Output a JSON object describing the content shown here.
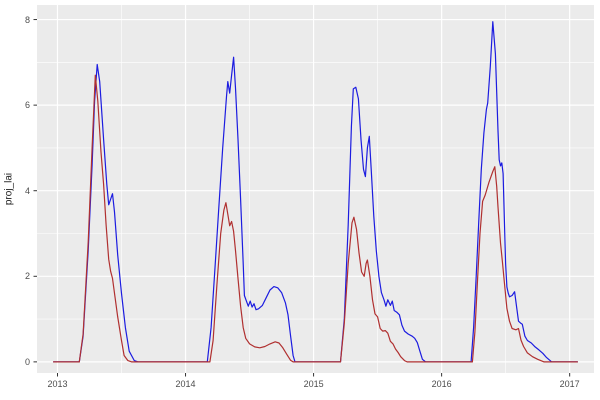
{
  "figure": {
    "background": "#FFFFFF",
    "panel_background": "#EBEBEB",
    "grid_color": "#FFFFFF",
    "tick_mark_color": "#333333",
    "tick_label_color": "#4D4D4D",
    "axis_title_color": "#1A1A1A"
  },
  "chart_data": {
    "type": "line",
    "title": "",
    "xlabel": "",
    "ylabel": "proj_lai",
    "grid": true,
    "legend": "none",
    "x_ticks": [
      "2013",
      "2014",
      "2015",
      "2016",
      "2017"
    ],
    "x_tick_values": [
      2013,
      2014,
      2015,
      2016,
      2017
    ],
    "x_minor_ticks": [
      2013.5,
      2014.5,
      2015.5,
      2016.5
    ],
    "y_ticks": [
      "0",
      "2",
      "4",
      "6",
      "8"
    ],
    "y_tick_values": [
      0,
      2,
      4,
      6,
      8
    ],
    "y_minor_ticks": [
      1,
      3,
      5,
      7
    ],
    "x_domain": [
      2012.84,
      2017.19
    ],
    "y_domain": [
      -0.26,
      8.34
    ],
    "series": [
      {
        "name": "blue-series",
        "color": "#1C1CE0",
        "points": [
          [
            2012.97,
            0
          ],
          [
            2013.17,
            0
          ],
          [
            2013.2,
            0.6
          ],
          [
            2013.24,
            2.6
          ],
          [
            2013.27,
            4.6
          ],
          [
            2013.29,
            6.1
          ],
          [
            2013.31,
            6.95
          ],
          [
            2013.33,
            6.55
          ],
          [
            2013.36,
            5.2
          ],
          [
            2013.385,
            4.15
          ],
          [
            2013.4,
            3.67
          ],
          [
            2013.43,
            3.93
          ],
          [
            2013.445,
            3.5
          ],
          [
            2013.47,
            2.5
          ],
          [
            2013.5,
            1.6
          ],
          [
            2013.53,
            0.8
          ],
          [
            2013.56,
            0.25
          ],
          [
            2013.6,
            0.03
          ],
          [
            2013.63,
            0
          ],
          [
            2014.17,
            0
          ],
          [
            2014.2,
            0.8
          ],
          [
            2014.23,
            2.2
          ],
          [
            2014.26,
            3.6
          ],
          [
            2014.29,
            5.0
          ],
          [
            2014.32,
            6.2
          ],
          [
            2014.33,
            6.55
          ],
          [
            2014.345,
            6.28
          ],
          [
            2014.36,
            6.7
          ],
          [
            2014.375,
            7.12
          ],
          [
            2014.39,
            6.4
          ],
          [
            2014.41,
            5.2
          ],
          [
            2014.43,
            3.8
          ],
          [
            2014.45,
            2.3
          ],
          [
            2014.46,
            1.55
          ],
          [
            2014.475,
            1.42
          ],
          [
            2014.49,
            1.3
          ],
          [
            2014.505,
            1.42
          ],
          [
            2014.52,
            1.28
          ],
          [
            2014.535,
            1.36
          ],
          [
            2014.55,
            1.22
          ],
          [
            2014.57,
            1.24
          ],
          [
            2014.6,
            1.32
          ],
          [
            2014.63,
            1.5
          ],
          [
            2014.66,
            1.68
          ],
          [
            2014.69,
            1.76
          ],
          [
            2014.72,
            1.73
          ],
          [
            2014.75,
            1.62
          ],
          [
            2014.78,
            1.38
          ],
          [
            2014.8,
            1.1
          ],
          [
            2014.82,
            0.62
          ],
          [
            2014.84,
            0.15
          ],
          [
            2014.855,
            0
          ],
          [
            2015.21,
            0
          ],
          [
            2015.24,
            1.0
          ],
          [
            2015.27,
            3.2
          ],
          [
            2015.295,
            5.5
          ],
          [
            2015.31,
            6.38
          ],
          [
            2015.33,
            6.42
          ],
          [
            2015.35,
            6.15
          ],
          [
            2015.37,
            5.2
          ],
          [
            2015.39,
            4.5
          ],
          [
            2015.405,
            4.33
          ],
          [
            2015.42,
            5.0
          ],
          [
            2015.435,
            5.27
          ],
          [
            2015.45,
            4.5
          ],
          [
            2015.47,
            3.4
          ],
          [
            2015.49,
            2.6
          ],
          [
            2015.51,
            2.0
          ],
          [
            2015.53,
            1.62
          ],
          [
            2015.55,
            1.45
          ],
          [
            2015.565,
            1.3
          ],
          [
            2015.58,
            1.45
          ],
          [
            2015.6,
            1.32
          ],
          [
            2015.615,
            1.42
          ],
          [
            2015.63,
            1.2
          ],
          [
            2015.65,
            1.16
          ],
          [
            2015.67,
            1.1
          ],
          [
            2015.69,
            0.86
          ],
          [
            2015.71,
            0.72
          ],
          [
            2015.74,
            0.65
          ],
          [
            2015.77,
            0.6
          ],
          [
            2015.79,
            0.55
          ],
          [
            2015.81,
            0.45
          ],
          [
            2015.83,
            0.25
          ],
          [
            2015.85,
            0.06
          ],
          [
            2015.875,
            0
          ],
          [
            2016.23,
            0
          ],
          [
            2016.25,
            0.8
          ],
          [
            2016.27,
            2.0
          ],
          [
            2016.29,
            3.3
          ],
          [
            2016.31,
            4.5
          ],
          [
            2016.33,
            5.35
          ],
          [
            2016.35,
            5.9
          ],
          [
            2016.36,
            6.05
          ],
          [
            2016.38,
            6.9
          ],
          [
            2016.4,
            7.95
          ],
          [
            2016.42,
            7.2
          ],
          [
            2016.43,
            6.3
          ],
          [
            2016.44,
            5.4
          ],
          [
            2016.45,
            4.72
          ],
          [
            2016.46,
            4.58
          ],
          [
            2016.47,
            4.65
          ],
          [
            2016.48,
            4.4
          ],
          [
            2016.49,
            3.3
          ],
          [
            2016.5,
            2.3
          ],
          [
            2016.51,
            1.75
          ],
          [
            2016.52,
            1.61
          ],
          [
            2016.53,
            1.52
          ],
          [
            2016.55,
            1.55
          ],
          [
            2016.57,
            1.64
          ],
          [
            2016.585,
            1.3
          ],
          [
            2016.6,
            0.95
          ],
          [
            2016.62,
            0.9
          ],
          [
            2016.63,
            0.88
          ],
          [
            2016.65,
            0.6
          ],
          [
            2016.67,
            0.5
          ],
          [
            2016.7,
            0.44
          ],
          [
            2016.73,
            0.35
          ],
          [
            2016.76,
            0.28
          ],
          [
            2016.79,
            0.2
          ],
          [
            2016.82,
            0.1
          ],
          [
            2016.86,
            0
          ],
          [
            2017.06,
            0
          ]
        ]
      },
      {
        "name": "red-series",
        "color": "#B03030",
        "points": [
          [
            2012.97,
            0
          ],
          [
            2013.17,
            0
          ],
          [
            2013.2,
            0.65
          ],
          [
            2013.24,
            2.8
          ],
          [
            2013.27,
            5.0
          ],
          [
            2013.295,
            6.7
          ],
          [
            2013.315,
            6.1
          ],
          [
            2013.34,
            4.9
          ],
          [
            2013.36,
            4.15
          ],
          [
            2013.38,
            3.2
          ],
          [
            2013.4,
            2.4
          ],
          [
            2013.415,
            2.12
          ],
          [
            2013.43,
            1.95
          ],
          [
            2013.45,
            1.5
          ],
          [
            2013.47,
            1.05
          ],
          [
            2013.5,
            0.5
          ],
          [
            2013.52,
            0.15
          ],
          [
            2013.55,
            0.03
          ],
          [
            2013.58,
            0
          ],
          [
            2014.19,
            0
          ],
          [
            2014.215,
            0.5
          ],
          [
            2014.245,
            1.8
          ],
          [
            2014.275,
            3.0
          ],
          [
            2014.3,
            3.55
          ],
          [
            2014.315,
            3.72
          ],
          [
            2014.33,
            3.45
          ],
          [
            2014.345,
            3.18
          ],
          [
            2014.36,
            3.28
          ],
          [
            2014.375,
            3.05
          ],
          [
            2014.39,
            2.6
          ],
          [
            2014.41,
            1.95
          ],
          [
            2014.43,
            1.3
          ],
          [
            2014.45,
            0.8
          ],
          [
            2014.47,
            0.55
          ],
          [
            2014.5,
            0.42
          ],
          [
            2014.54,
            0.35
          ],
          [
            2014.58,
            0.33
          ],
          [
            2014.62,
            0.36
          ],
          [
            2014.66,
            0.42
          ],
          [
            2014.7,
            0.47
          ],
          [
            2014.73,
            0.44
          ],
          [
            2014.76,
            0.33
          ],
          [
            2014.79,
            0.18
          ],
          [
            2014.82,
            0.04
          ],
          [
            2014.84,
            0
          ],
          [
            2015.21,
            0
          ],
          [
            2015.24,
            0.9
          ],
          [
            2015.27,
            2.3
          ],
          [
            2015.3,
            3.25
          ],
          [
            2015.315,
            3.38
          ],
          [
            2015.335,
            3.1
          ],
          [
            2015.355,
            2.55
          ],
          [
            2015.375,
            2.1
          ],
          [
            2015.395,
            2.0
          ],
          [
            2015.41,
            2.3
          ],
          [
            2015.42,
            2.38
          ],
          [
            2015.44,
            2.0
          ],
          [
            2015.46,
            1.45
          ],
          [
            2015.48,
            1.12
          ],
          [
            2015.5,
            1.05
          ],
          [
            2015.52,
            0.78
          ],
          [
            2015.54,
            0.72
          ],
          [
            2015.56,
            0.73
          ],
          [
            2015.58,
            0.67
          ],
          [
            2015.6,
            0.48
          ],
          [
            2015.62,
            0.42
          ],
          [
            2015.64,
            0.3
          ],
          [
            2015.66,
            0.22
          ],
          [
            2015.68,
            0.12
          ],
          [
            2015.71,
            0.03
          ],
          [
            2015.73,
            0
          ],
          [
            2016.24,
            0
          ],
          [
            2016.26,
            0.7
          ],
          [
            2016.28,
            1.9
          ],
          [
            2016.3,
            3.0
          ],
          [
            2016.32,
            3.75
          ],
          [
            2016.34,
            3.9
          ],
          [
            2016.37,
            4.2
          ],
          [
            2016.4,
            4.45
          ],
          [
            2016.415,
            4.56
          ],
          [
            2016.43,
            4.1
          ],
          [
            2016.44,
            3.62
          ],
          [
            2016.46,
            2.78
          ],
          [
            2016.475,
            2.34
          ],
          [
            2016.49,
            1.85
          ],
          [
            2016.51,
            1.25
          ],
          [
            2016.53,
            0.95
          ],
          [
            2016.55,
            0.78
          ],
          [
            2016.58,
            0.75
          ],
          [
            2016.6,
            0.78
          ],
          [
            2016.62,
            0.51
          ],
          [
            2016.64,
            0.36
          ],
          [
            2016.67,
            0.21
          ],
          [
            2016.71,
            0.12
          ],
          [
            2016.75,
            0.06
          ],
          [
            2016.8,
            0
          ],
          [
            2017.06,
            0
          ]
        ]
      }
    ]
  }
}
